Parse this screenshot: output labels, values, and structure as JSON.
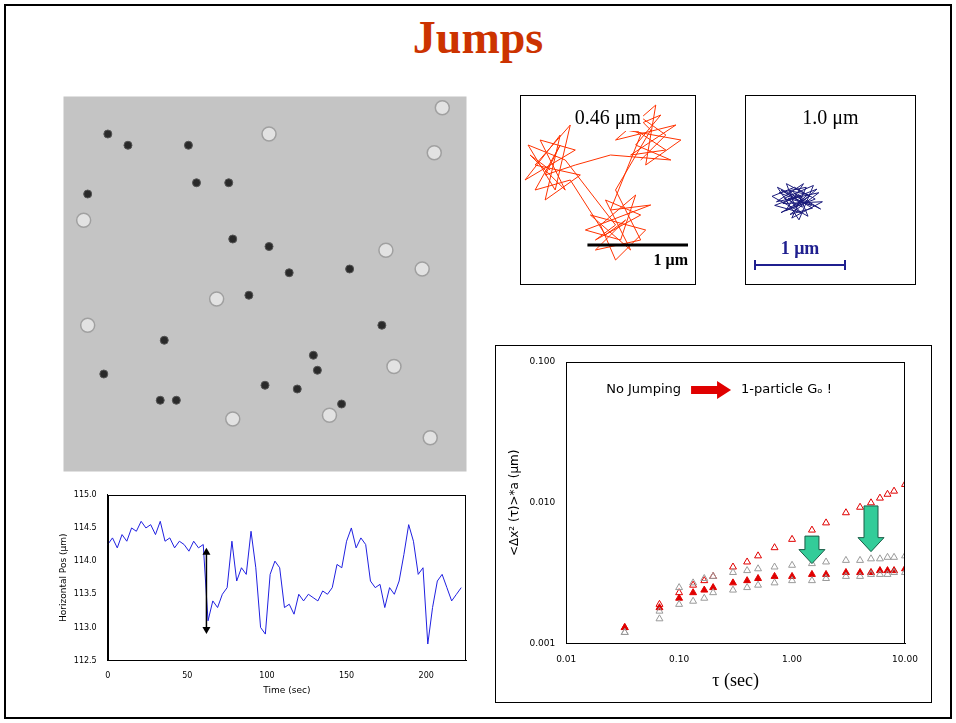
{
  "title": "Jumps",
  "chart_data": [
    {
      "type": "scatter",
      "tick_labels": false,
      "grid": false,
      "xlim": [
        0,
        100
      ],
      "ylim": [
        0,
        100
      ],
      "series": [
        {
          "marker": "circle",
          "color": "#2a2a2a",
          "x": [
            11,
            16,
            31,
            6,
            33,
            41,
            42,
            51,
            56,
            46,
            71,
            58,
            62,
            63,
            50,
            28,
            10,
            24,
            69,
            79,
            25
          ],
          "values": [
            90,
            87,
            87,
            74,
            77,
            77,
            62,
            60,
            53,
            47,
            54,
            22,
            31,
            27,
            23,
            19,
            26,
            19,
            18,
            39,
            35
          ]
        },
        {
          "marker": "ring",
          "color": "#e2e2e2",
          "x": [
            51,
            92,
            80,
            89,
            66,
            91,
            82,
            5,
            38,
            6,
            42,
            94
          ],
          "values": [
            90,
            85,
            59,
            54,
            15,
            9,
            28,
            67,
            46,
            39,
            14,
            97
          ]
        }
      ]
    },
    {
      "type": "scatter",
      "title": "0.46 μm",
      "tick_labels": false,
      "grid": false,
      "xlim": [
        0,
        1.75
      ],
      "ylim": [
        0,
        1.9
      ],
      "scale_bar": {
        "length": 1,
        "label": "1 μm",
        "color": "#000000"
      },
      "series": [
        {
          "color": "#ff3300",
          "marker": "none",
          "line_style": "solid",
          "x": [
            0.3,
            0.1,
            0.45,
            0.2,
            0.55,
            0.05,
            0.4,
            0.25,
            0.6,
            0.15,
            0.5,
            0.35,
            0.08,
            0.45,
            0.95,
            0.75,
            1.2,
            0.85,
            1.1,
            0.7,
            1.25,
            0.95,
            0.8,
            1.15,
            1,
            0.65,
            1.3,
            0.9,
            1.2,
            1,
            1.45,
            1.1,
            1.55,
            0.95,
            1.35,
            1.25,
            1.6,
            1.05,
            1.4,
            1.15,
            1.5,
            0.9,
            0.55,
            0.25,
            0.4,
            0.15,
            0.5,
            0.85,
            1.05,
            0.75,
            1.2,
            0.95,
            1.3,
            1.1,
            1.45,
            1.2
          ],
          "values": [
            1.15,
            1.3,
            0.95,
            1.45,
            1.35,
            1.05,
            1.5,
            0.85,
            1.1,
            1.2,
            1.6,
            0.95,
            1.4,
            1.25,
            0.6,
            0.45,
            0.7,
            0.85,
            0.35,
            0.7,
            0.55,
            0.25,
            0.6,
            0.9,
            0.45,
            0.55,
            0.8,
            0.75,
            1.5,
            1.65,
            1.35,
            1.3,
            1.6,
            1.45,
            1.8,
            1.2,
            1.45,
            1.55,
            1.7,
            1.4,
            1.25,
            1.3,
            1.2,
            1.1,
            1.4,
            0.95,
            1.05,
            0.5,
            0.65,
            0.35,
            0.45,
            0.95,
            1.55,
            1.75,
            1.5,
            1.25
          ]
        }
      ]
    },
    {
      "type": "scatter",
      "title": "1.0 μm",
      "tick_labels": false,
      "grid": false,
      "xlim": [
        0,
        1.9
      ],
      "ylim": [
        0,
        2.1
      ],
      "scale_bar": {
        "length": 1,
        "label": "1 μm",
        "color": "#1f1f8f"
      },
      "series": [
        {
          "color": "#1a1a7a",
          "marker": "none",
          "line_style": "solid",
          "x": [
            0.58,
            0.4,
            0.75,
            0.5,
            0.82,
            0.35,
            0.65,
            0.45,
            0.78,
            0.55,
            0.3,
            0.7,
            0.6,
            0.42,
            0.86,
            0.52,
            0.68,
            0.38,
            0.74,
            0.48,
            0.62,
            0.33,
            0.8,
            0.56,
            0.46,
            0.72,
            0.4,
            0.66,
            0.54,
            0.84,
            0.36,
            0.6,
            0.76,
            0.44,
            0.64,
            0.5,
            0.7,
            0.58
          ],
          "values": [
            0.94,
            1.05,
            0.85,
            0.78,
            1.02,
            0.92,
            1.12,
            0.82,
            0.95,
            1.08,
            0.98,
            0.76,
            1,
            0.9,
            0.92,
            0.74,
            1.08,
            1.02,
            0.88,
            0.96,
            0.8,
            0.88,
            1.06,
            0.86,
            1.12,
            0.98,
            0.8,
            0.92,
            1.02,
            0.84,
            1.08,
            0.72,
            1.1,
            0.96,
            0.86,
            1.04,
            1,
            0.9
          ]
        }
      ]
    },
    {
      "type": "line",
      "x_label": "Time (sec)",
      "y_label": "Horizontal Pos (μm)",
      "grid": false,
      "xlim": [
        0,
        225
      ],
      "xticks": [
        0,
        50,
        100,
        150,
        200
      ],
      "ylim": [
        112.5,
        115
      ],
      "yticks": [
        112.5,
        {
          "value": 113,
          "label": "113.0"
        },
        113.5,
        {
          "value": 114,
          "label": "114.0"
        },
        114.5,
        {
          "value": 115,
          "label": "115.0"
        }
      ],
      "arrows": [
        {
          "x": 62,
          "from": 112.9,
          "to": 114.2
        }
      ],
      "series": [
        {
          "color": "#2020e0",
          "marker": "none",
          "line_style": "solid",
          "x": [
            0,
            3,
            6,
            9,
            12,
            15,
            18,
            21,
            24,
            27,
            30,
            33,
            36,
            39,
            42,
            45,
            48,
            51,
            54,
            57,
            60,
            63,
            66,
            69,
            72,
            75,
            78,
            81,
            84,
            87,
            90,
            93,
            96,
            99,
            102,
            105,
            108,
            111,
            114,
            117,
            120,
            123,
            126,
            129,
            132,
            135,
            138,
            141,
            144,
            147,
            150,
            153,
            156,
            159,
            162,
            165,
            168,
            171,
            174,
            177,
            180,
            183,
            186,
            189,
            192,
            195,
            198,
            201,
            204,
            207,
            210,
            213,
            216,
            219,
            222
          ],
          "values": [
            114.25,
            114.35,
            114.2,
            114.4,
            114.3,
            114.5,
            114.45,
            114.6,
            114.5,
            114.55,
            114.4,
            114.6,
            114.3,
            114.35,
            114.2,
            114.3,
            114.25,
            114.15,
            114.3,
            114.2,
            114.25,
            113.1,
            113.4,
            113.3,
            113.5,
            113.6,
            114.3,
            113.7,
            113.9,
            113.8,
            114.45,
            113.9,
            113.0,
            112.9,
            113.8,
            114.0,
            113.9,
            113.3,
            113.35,
            113.2,
            113.5,
            113.4,
            113.5,
            113.45,
            113.4,
            113.55,
            113.5,
            113.6,
            113.95,
            113.9,
            114.3,
            114.5,
            114.2,
            114.35,
            114.25,
            113.7,
            113.6,
            113.65,
            113.3,
            113.6,
            113.5,
            113.7,
            114.1,
            114.55,
            114.3,
            113.8,
            113.9,
            112.75,
            113.3,
            113.7,
            113.8,
            113.6,
            113.4,
            113.5,
            113.6
          ]
        }
      ]
    },
    {
      "type": "scatter",
      "log": true,
      "grid": false,
      "x_label": "τ (sec)",
      "y_label": "<Δx² (τ)>*a (μm)",
      "xlim": [
        0.01,
        10
      ],
      "xticks": [
        0.01,
        {
          "value": 0.1,
          "label": "0.10"
        },
        {
          "value": 1,
          "label": "1.00"
        },
        {
          "value": 10,
          "label": "10.00"
        }
      ],
      "ylim": [
        0.001,
        0.1
      ],
      "yticks": [
        0.001,
        {
          "value": 0.01,
          "label": "0.010"
        },
        {
          "value": 0.1,
          "label": "0.100"
        }
      ],
      "annotations": [
        "No Jumping",
        "1-particle Gₒ !"
      ],
      "arrows": [
        {
          "x": 1.5,
          "from": 0.0058,
          "to": 0.0037
        },
        {
          "x": 5,
          "from": 0.0095,
          "to": 0.0045
        }
      ],
      "x": [
        0.033,
        0.067,
        0.1,
        0.133,
        0.167,
        0.2,
        0.3,
        0.4,
        0.5,
        0.7,
        1,
        1.5,
        2,
        3,
        4,
        5,
        6,
        7,
        8,
        10
      ],
      "series": [
        {
          "color": "#9a9a9a",
          "marker": "open_triangle",
          "values": [
            0.0012,
            0.0017,
            0.0025,
            0.0027,
            0.0029,
            0.003,
            0.0032,
            0.0033,
            0.0034,
            0.0035,
            0.0036,
            0.0037,
            0.0038,
            0.0039,
            0.0039,
            0.004,
            0.004,
            0.0041,
            0.0041,
            0.0042
          ]
        },
        {
          "color": "#9a9a9a",
          "marker": "open_triangle",
          "values": [
            0.0012,
            0.0015,
            0.0019,
            0.002,
            0.0021,
            0.0023,
            0.0024,
            0.0025,
            0.0026,
            0.0027,
            0.0028,
            0.0028,
            0.0029,
            0.003,
            0.003,
            0.0031,
            0.0031,
            0.0031,
            0.0032,
            0.0032
          ]
        },
        {
          "color": "#e00000",
          "marker": "open_triangle",
          "values": [
            0.0013,
            0.0019,
            0.0023,
            0.0026,
            0.0028,
            0.003,
            0.0035,
            0.0038,
            0.0042,
            0.0048,
            0.0055,
            0.0064,
            0.0072,
            0.0085,
            0.0093,
            0.01,
            0.0108,
            0.0115,
            0.0121,
            0.0135
          ]
        },
        {
          "color": "#e00000",
          "marker": "triangle",
          "values": [
            0.0013,
            0.0018,
            0.0021,
            0.0023,
            0.0024,
            0.0025,
            0.0027,
            0.0028,
            0.0029,
            0.003,
            0.003,
            0.0031,
            0.0031,
            0.0032,
            0.0032,
            0.0032,
            0.0033,
            0.0033,
            0.0033,
            0.0034
          ]
        }
      ]
    }
  ]
}
